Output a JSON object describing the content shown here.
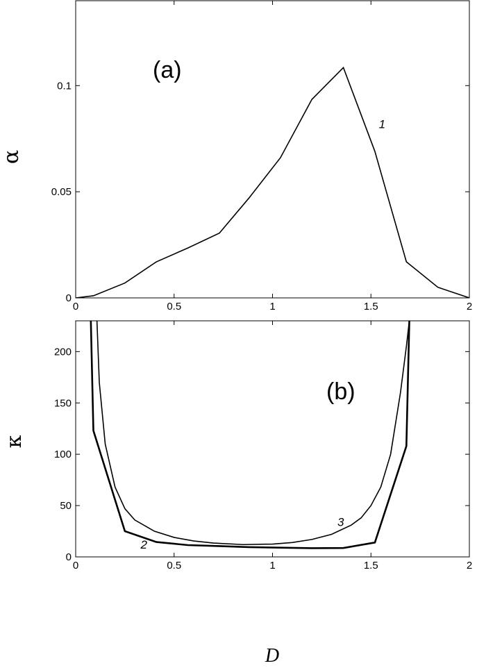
{
  "chart_data": [
    {
      "type": "line",
      "panel_label": "(a)",
      "ylabel": "α",
      "xlabel": "",
      "xlim": [
        0,
        2
      ],
      "ylim": [
        0,
        0.14
      ],
      "x_ticks": [
        {
          "v": 0,
          "label": "0"
        },
        {
          "v": 0.5,
          "label": "0.5"
        },
        {
          "v": 1,
          "label": "1"
        },
        {
          "v": 1.5,
          "label": "1.5"
        },
        {
          "v": 2,
          "label": "2"
        }
      ],
      "y_ticks": [
        {
          "v": 0,
          "label": "0"
        },
        {
          "v": 0.05,
          "label": "0.05"
        },
        {
          "v": 0.1,
          "label": "0.1"
        }
      ],
      "series": [
        {
          "name": "1",
          "stroke_weight": "thin",
          "x": [
            0,
            0.09,
            0.25,
            0.41,
            0.57,
            0.73,
            0.88,
            1.04,
            1.2,
            1.36,
            1.52,
            1.68,
            1.84,
            2.0
          ],
          "y": [
            0,
            0.001,
            0.007,
            0.017,
            0.0235,
            0.0305,
            0.047,
            0.066,
            0.0935,
            0.1085,
            0.069,
            0.017,
            0.005,
            0
          ]
        }
      ],
      "annotations": [
        {
          "text": "1",
          "x": 1.54,
          "y": 0.08
        }
      ]
    },
    {
      "type": "line",
      "panel_label": "(b)",
      "ylabel": "κ",
      "xlabel": "D",
      "xlim": [
        0,
        2
      ],
      "ylim": [
        0,
        230
      ],
      "x_ticks": [
        {
          "v": 0,
          "label": "0"
        },
        {
          "v": 0.5,
          "label": "0.5"
        },
        {
          "v": 1,
          "label": "1"
        },
        {
          "v": 1.5,
          "label": "1.5"
        },
        {
          "v": 2,
          "label": "2"
        }
      ],
      "y_ticks": [
        {
          "v": 0,
          "label": "0"
        },
        {
          "v": 50,
          "label": "50"
        },
        {
          "v": 100,
          "label": "100"
        },
        {
          "v": 150,
          "label": "150"
        },
        {
          "v": 200,
          "label": "200"
        }
      ],
      "series": [
        {
          "name": "2",
          "stroke_weight": "thick",
          "x": [
            0.077,
            0.09,
            0.25,
            0.41,
            0.57,
            0.73,
            0.88,
            1.04,
            1.2,
            1.36,
            1.52,
            1.68,
            1.695
          ],
          "y": [
            230,
            123,
            25,
            14.5,
            11.5,
            10.5,
            9.5,
            9,
            8.5,
            8.7,
            14,
            108,
            230
          ]
        },
        {
          "name": "3",
          "stroke_weight": "thin",
          "x": [
            0.108,
            0.12,
            0.15,
            0.2,
            0.25,
            0.3,
            0.4,
            0.5,
            0.6,
            0.7,
            0.85,
            1.0,
            1.1,
            1.2,
            1.3,
            1.4,
            1.45,
            1.5,
            1.55,
            1.6,
            1.65,
            1.68,
            1.695
          ],
          "y": [
            230,
            170,
            110,
            68,
            47,
            36,
            25,
            19,
            15.5,
            13.5,
            12,
            12.5,
            14,
            17,
            22,
            31,
            38,
            50,
            68,
            100,
            160,
            205,
            230
          ]
        }
      ],
      "annotations": [
        {
          "text": "2",
          "x": 0.33,
          "y": 8
        },
        {
          "text": "3",
          "x": 1.33,
          "y": 30
        }
      ]
    }
  ]
}
